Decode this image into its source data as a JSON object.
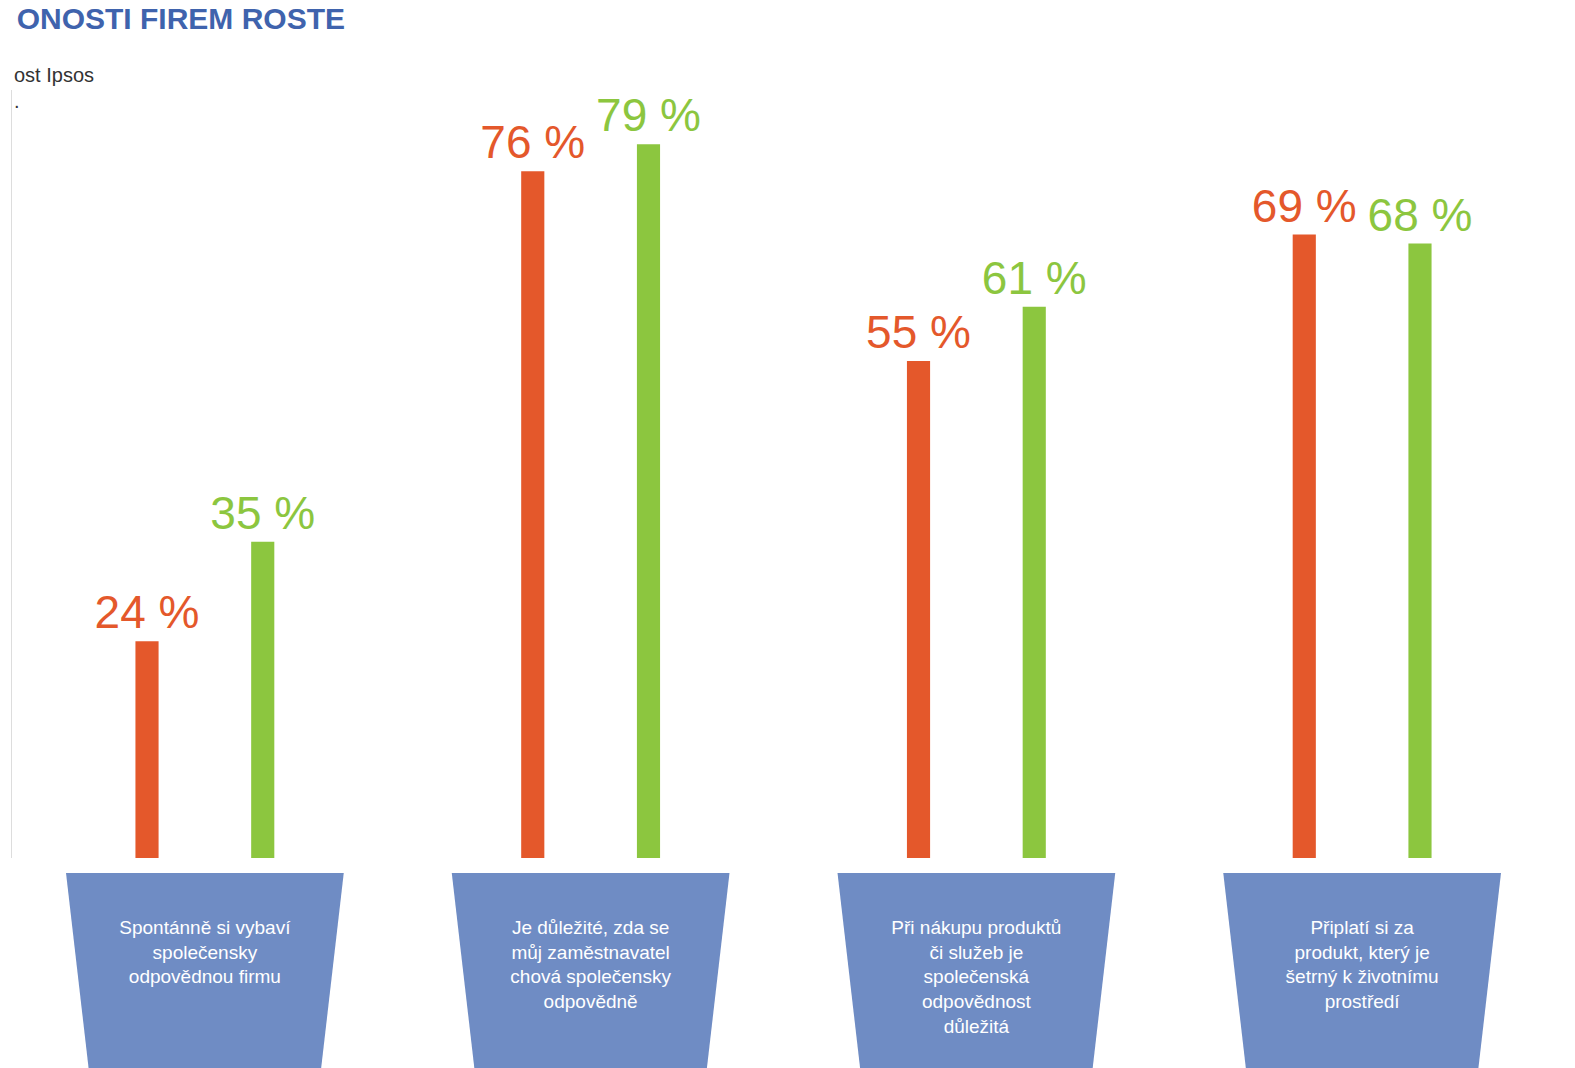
{
  "chart_data": {
    "type": "bar",
    "title": "ONOSTI FIREM ROSTE",
    "subtitle": [
      "ost Ipsos",
      "."
    ],
    "categories": [
      "Spontánně si vybaví společensky odpovědnou firmu",
      "Je důležité, zda se můj zaměstnavatel chová společensky odpovědně",
      "Při nákupu produktů či služeb je společenská odpovědnost důležitá",
      "Připlatí si za produkt, který je šetrný k životnímu prostředí"
    ],
    "series": [
      {
        "color": "#e4582b",
        "values": [
          24,
          76,
          55,
          69
        ],
        "value_labels": [
          "24 %",
          "76 %",
          "55 %",
          "69 %"
        ]
      },
      {
        "color": "#8cc63f",
        "values": [
          35,
          79,
          61,
          68
        ],
        "value_labels": [
          "35 %",
          "79 %",
          "61 %",
          "68 %"
        ]
      }
    ],
    "ylim": [
      0,
      85
    ],
    "data_labels": true,
    "tick_labels": "x",
    "grid": false
  }
}
